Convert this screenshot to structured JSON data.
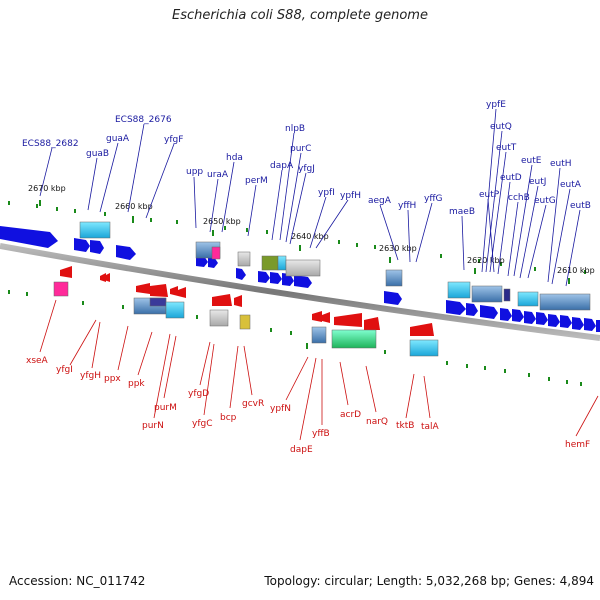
{
  "title": "Escherichia coli S88, complete genome",
  "footer": {
    "accession": "Accession: NC_011742",
    "topology": "Topology: circular; Length: 5,032,268 bp; Genes: 4,894"
  },
  "colors": {
    "forward_gene": "#1010e0",
    "reverse_gene": "#e01010",
    "forward_label": "#1a1aa0",
    "reverse_label": "#cc1010",
    "backbone": "#8a8a8a",
    "tick": "#1a8a1a"
  },
  "scale_labels": [
    "2670 kbp",
    "2660 kbp",
    "2650 kbp",
    "2640 kbp",
    "2630 kbp",
    "2620 kbp",
    "2610 kbp"
  ],
  "forward_genes": [
    "ECS88_2682",
    "guaB",
    "guaA",
    "ECS88_2676",
    "yfgF",
    "upp",
    "uraA",
    "hda",
    "perM",
    "dapA",
    "nlpB",
    "purC",
    "yfgJ",
    "ypfI",
    "ypfH",
    "aegA",
    "yffH",
    "yffG",
    "maeB",
    "ypfE",
    "eutQ",
    "eutT",
    "eutP",
    "eutD",
    "cchB",
    "eutE",
    "eutJ",
    "eutG",
    "eutH",
    "eutA",
    "eutB"
  ],
  "reverse_genes": [
    "xseA",
    "yfgI",
    "yfgH",
    "ppx",
    "ppk",
    "purM",
    "purN",
    "yfgD",
    "yfgC",
    "bcp",
    "gcvR",
    "ypfN",
    "dapE",
    "yffB",
    "acrD",
    "narQ",
    "tktB",
    "talA",
    "hemF"
  ]
}
